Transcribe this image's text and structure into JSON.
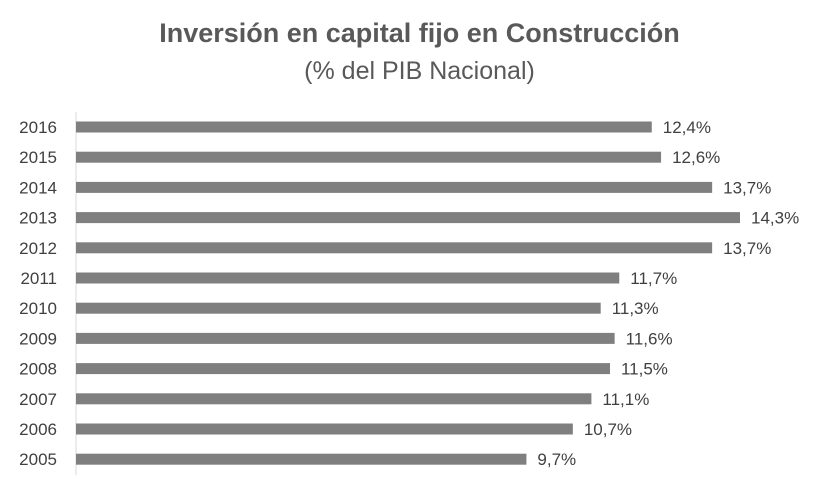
{
  "chart_data": {
    "type": "bar",
    "orientation": "horizontal",
    "title": "Inversión en capital fijo en Construcción",
    "subtitle": "(% del PIB Nacional)",
    "categories": [
      "2016",
      "2015",
      "2014",
      "2013",
      "2012",
      "2011",
      "2010",
      "2009",
      "2008",
      "2007",
      "2006",
      "2005"
    ],
    "values": [
      12.4,
      12.6,
      13.7,
      14.3,
      13.7,
      11.7,
      11.3,
      11.6,
      11.5,
      11.1,
      10.7,
      9.7
    ],
    "data_labels": [
      "12,4%",
      "12,6%",
      "13,7%",
      "14,3%",
      "13,7%",
      "11,7%",
      "11,3%",
      "11,6%",
      "11,5%",
      "11,1%",
      "10,7%",
      "9,7%"
    ],
    "xlim": [
      0,
      14.3
    ],
    "grid": false,
    "legend": "none",
    "bar_color": "#7f7f7f"
  }
}
